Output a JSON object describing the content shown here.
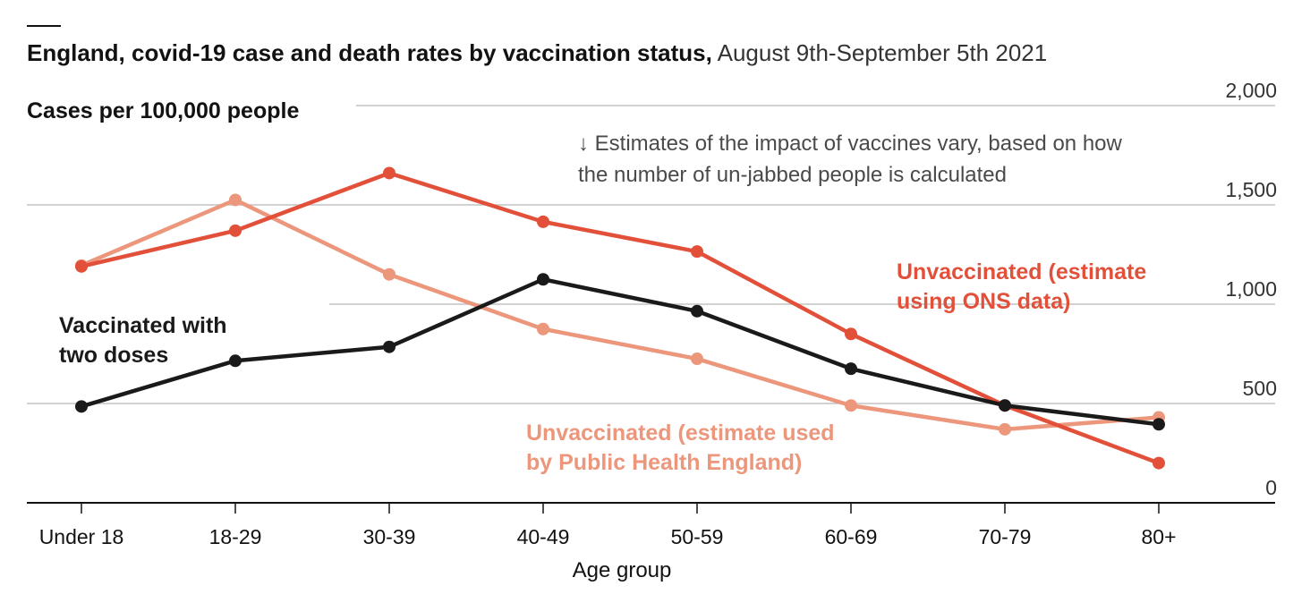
{
  "title": {
    "bold": "England, covid-19 case and death rates by vaccination status,",
    "normal": "August 9th-September 5th 2021"
  },
  "chart_data": {
    "type": "line",
    "ylabel": "Cases per 100,000 people",
    "xlabel": "Age group",
    "categories": [
      "Under 18",
      "18-29",
      "30-39",
      "40-49",
      "50-59",
      "60-69",
      "70-79",
      "80+"
    ],
    "y_ticks": [
      "0",
      "500",
      "1,000",
      "1,500",
      "2,000"
    ],
    "y_tick_values": [
      0,
      500,
      1000,
      1500,
      2000
    ],
    "ylim": [
      0,
      2000
    ],
    "grid": true,
    "series": [
      {
        "id": "phe",
        "name": "Unvaccinated (estimate used by Public Health England)",
        "color": "#ec967b",
        "values": [
          1195,
          1525,
          1150,
          875,
          725,
          490,
          370,
          430
        ]
      },
      {
        "id": "ons",
        "name": "Unvaccinated (estimate using ONS data)",
        "color": "#e3503a",
        "values": [
          1190,
          1370,
          1660,
          1415,
          1265,
          850,
          490,
          200
        ]
      },
      {
        "id": "vax",
        "name": "Vaccinated with two doses",
        "color": "#1a1a1a",
        "values": [
          485,
          715,
          785,
          1125,
          965,
          675,
          490,
          395
        ]
      }
    ],
    "annotation": "↓ Estimates of the impact of vaccines vary, based on how the number of un-jabbed people is calculated"
  },
  "labels": {
    "vax": "Vaccinated with two doses",
    "ons": "Unvaccinated (estimate using ONS data)",
    "phe": "Unvaccinated (estimate used by Public Health England)"
  },
  "colors": {
    "grid": "#c4c4c4",
    "axis": "#121212"
  }
}
